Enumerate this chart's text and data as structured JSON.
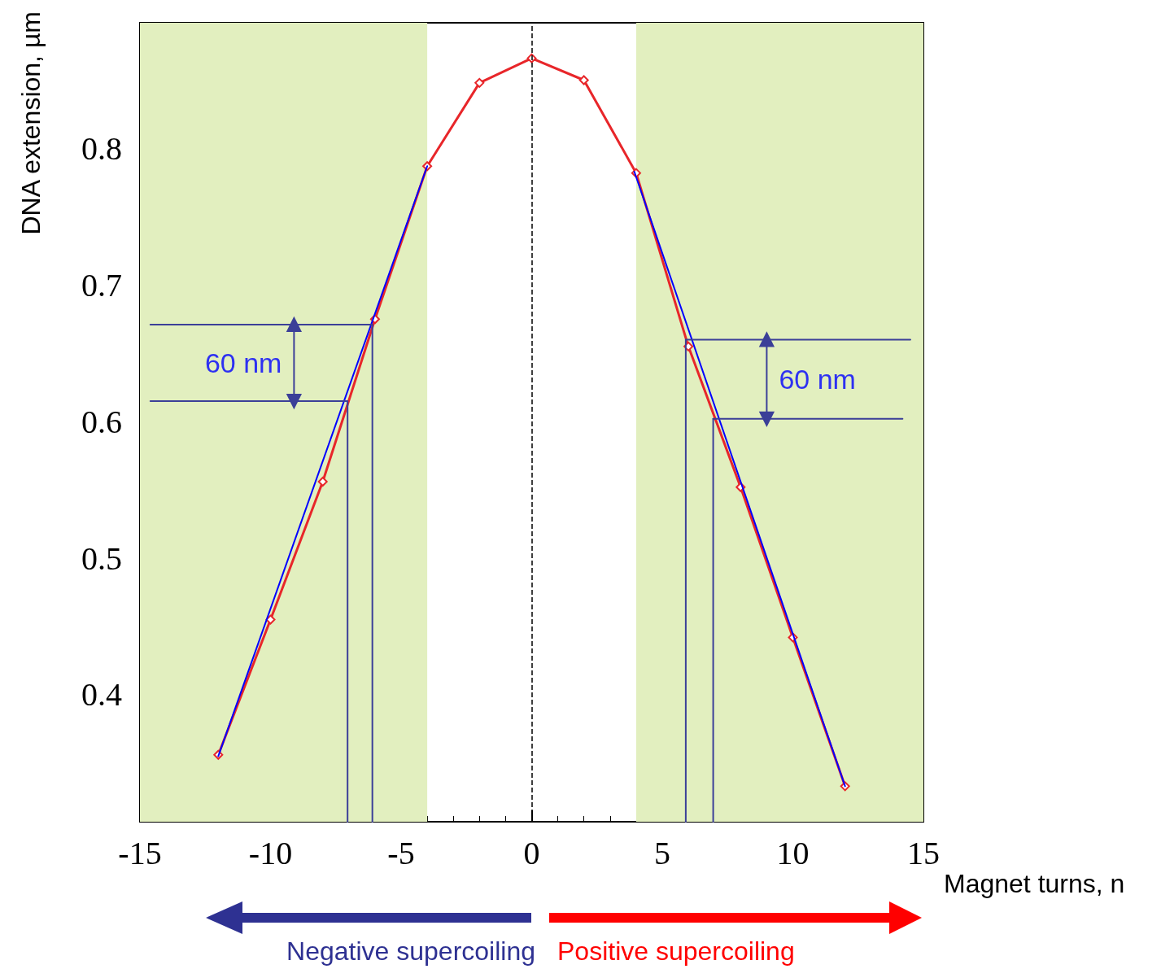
{
  "chart_data": {
    "type": "line",
    "xlabel": "Magnet turns, n",
    "ylabel": "DNA extension, µm",
    "xlim": [
      -15,
      15
    ],
    "xticks": [
      -15,
      -10,
      -5,
      0,
      5,
      10,
      15
    ],
    "ylim": [
      0.307,
      0.892
    ],
    "yticks": [
      0.4,
      0.5,
      0.6,
      0.7,
      0.8
    ],
    "grid": false,
    "marker": "diamond",
    "line_style": "solid",
    "series": [
      {
        "color": "#e8262a",
        "x": [
          -12,
          -10,
          -8,
          -6,
          -4,
          -2,
          0,
          2,
          4,
          6,
          8,
          10,
          12
        ],
        "values": [
          0.356,
          0.455,
          0.556,
          0.675,
          0.787,
          0.848,
          0.866,
          0.85,
          0.782,
          0.655,
          0.552,
          0.442,
          0.333
        ]
      },
      {
        "color": "#0000ff",
        "marker": "none",
        "x": [
          -12,
          -4
        ],
        "values": [
          0.355,
          0.787
        ]
      },
      {
        "color": "#0000ff",
        "marker": "none",
        "x": [
          3.93,
          12
        ],
        "values": [
          0.783,
          0.333
        ]
      },
      {
        "color": "#3b3f98",
        "marker": "none",
        "x": [
          -14.6,
          -6.1
        ],
        "values": [
          0.671,
          0.671
        ]
      },
      {
        "color": "#3b3f98",
        "marker": "none",
        "x": [
          -14.6,
          -7.05
        ],
        "values": [
          0.615,
          0.615
        ]
      },
      {
        "color": "#3b3f98",
        "marker": "none",
        "x": [
          -7.05,
          -7.05
        ],
        "values": [
          0.307,
          0.615
        ]
      },
      {
        "color": "#3b3f98",
        "marker": "none",
        "x": [
          -6.1,
          -6.1
        ],
        "values": [
          0.307,
          0.671
        ]
      },
      {
        "color": "#3b3f98",
        "marker": "none",
        "x": [
          5.9,
          14.5
        ],
        "values": [
          0.66,
          0.66
        ]
      },
      {
        "color": "#3b3f98",
        "marker": "none",
        "x": [
          6.95,
          14.2
        ],
        "values": [
          0.602,
          0.602
        ]
      },
      {
        "color": "#3b3f98",
        "marker": "none",
        "x": [
          5.9,
          5.9
        ],
        "values": [
          0.307,
          0.66
        ]
      },
      {
        "color": "#3b3f98",
        "marker": "none",
        "x": [
          6.95,
          6.95
        ],
        "values": [
          0.307,
          0.602
        ]
      },
      {
        "color": "#3b3f98",
        "marker": "triangle",
        "x": [
          -9.1,
          -9.1
        ],
        "values": [
          0.671,
          0.615
        ]
      },
      {
        "color": "#3b3f98",
        "marker": "triangle",
        "x": [
          9.0,
          9.0
        ],
        "values": [
          0.66,
          0.602
        ]
      }
    ],
    "bands": [
      {
        "axis": "x",
        "from": -15,
        "to": -4,
        "color": "#e2efbf"
      },
      {
        "axis": "x",
        "from": 4,
        "to": 15,
        "color": "#e2efbf"
      }
    ],
    "ref_lines": [
      {
        "axis": "x",
        "value": 0,
        "color": "#000000",
        "line_style": "dashed"
      }
    ],
    "annotations": [
      "60 nm",
      "60 nm",
      "Negative supercoiling",
      "Positive supercoiling"
    ]
  }
}
